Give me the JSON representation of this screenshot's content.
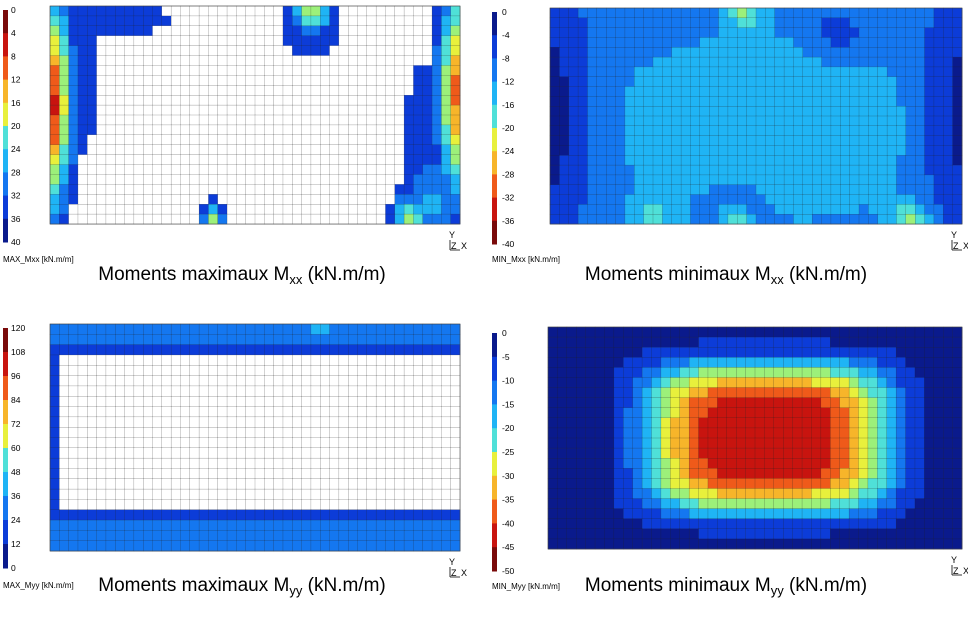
{
  "chart_data": [
    {
      "type": "heatmap",
      "scale_label": "MAX_Mxx [kN.m/m]",
      "colorbar_ticks": [
        0,
        4,
        8,
        12,
        16,
        20,
        24,
        28,
        32,
        36,
        40
      ],
      "clim": [
        0,
        40
      ],
      "caption": {
        "main": "Moments maximaux M",
        "sub": "xx",
        "unit": "(kN.m/m)"
      },
      "axes": {
        "y": "Y",
        "z": "Z",
        "x": "X"
      },
      "grid": true,
      "field": "max_mxx"
    },
    {
      "type": "heatmap",
      "scale_label": "MIN_Mxx [kN.m/m]",
      "colorbar_ticks": [
        0,
        -4,
        -8,
        -12,
        -16,
        -20,
        -24,
        -28,
        -32,
        -36,
        -40
      ],
      "clim": [
        -40,
        0
      ],
      "caption": {
        "main": "Moments minimaux M",
        "sub": "xx",
        "unit": "(kN.m/m)"
      },
      "axes": {
        "y": "Y",
        "z": "Z",
        "x": "X"
      },
      "grid": true,
      "field": "min_mxx"
    },
    {
      "type": "heatmap",
      "scale_label": "MAX_Myy [kN.m/m]",
      "colorbar_ticks": [
        120,
        108,
        96,
        84,
        72,
        60,
        48,
        36,
        24,
        12,
        0
      ],
      "clim": [
        0,
        120
      ],
      "caption": {
        "main": "Moments maximaux M",
        "sub": "yy",
        "unit": "(kN.m/m)"
      },
      "axes": {
        "y": "Y",
        "z": "Z",
        "x": "X"
      },
      "grid": true,
      "field": "max_myy"
    },
    {
      "type": "heatmap",
      "scale_label": "MIN_Myy [kN.m/m]",
      "colorbar_ticks": [
        0,
        -5,
        -10,
        -15,
        -20,
        -25,
        -30,
        -35,
        -40,
        -45,
        -50
      ],
      "clim": [
        -50,
        0
      ],
      "caption": {
        "main": "Moments minimaux M",
        "sub": "yy",
        "unit": "(kN.m/m)"
      },
      "axes": {
        "y": "Y",
        "z": "Z",
        "x": "X"
      },
      "grid": true,
      "field": "min_myy"
    }
  ],
  "palette": [
    "#0a1a8c",
    "#0c3cd8",
    "#1477f0",
    "#1fb4f5",
    "#4fe0d8",
    "#9cf07a",
    "#e8f03c",
    "#f7b52a",
    "#ef5a1a",
    "#c8140f",
    "#7a0a0a"
  ]
}
